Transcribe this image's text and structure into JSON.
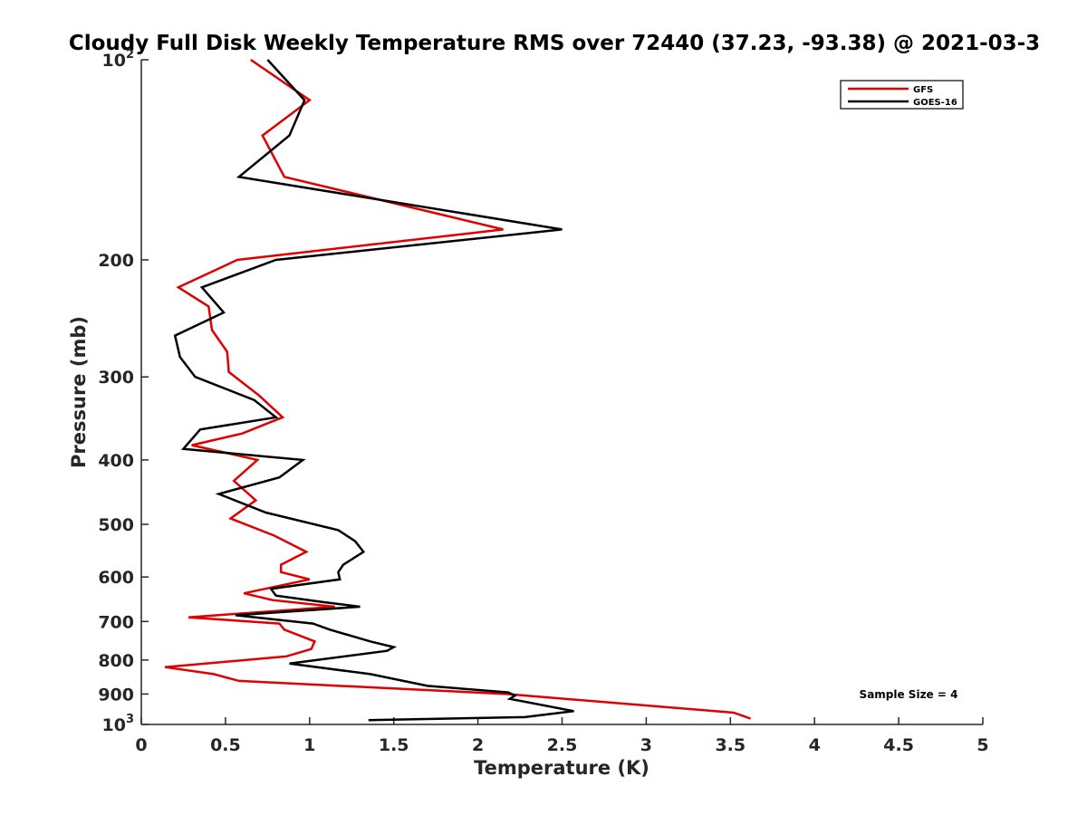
{
  "chart_data": {
    "type": "line",
    "title": "Cloudy Full Disk Weekly Temperature RMS over 72440 (37.23, -93.38) @ 2021-03-3",
    "xlabel": "Temperature (K)",
    "ylabel": "Pressure (mb)",
    "xlim": [
      0,
      5
    ],
    "ylim": [
      100,
      1000
    ],
    "y_scale": "log",
    "y_reversed": true,
    "grid": false,
    "legend_position": "top-right",
    "x_ticks": [
      "0",
      "0.5",
      "1",
      "1.5",
      "2",
      "2.5",
      "3",
      "3.5",
      "4",
      "4.5",
      "5"
    ],
    "y_ticks": [
      {
        "value": 100,
        "base": "10",
        "exp": "2"
      },
      {
        "value": 200,
        "label": "200"
      },
      {
        "value": 300,
        "label": "300"
      },
      {
        "value": 400,
        "label": "400"
      },
      {
        "value": 500,
        "label": "500"
      },
      {
        "value": 600,
        "label": "600"
      },
      {
        "value": 700,
        "label": "700"
      },
      {
        "value": 800,
        "label": "800"
      },
      {
        "value": 900,
        "label": "900"
      },
      {
        "value": 1000,
        "base": "10",
        "exp": "3"
      }
    ],
    "annotation": "Sample Size = 4",
    "series": [
      {
        "name": "GFS",
        "color": "#e00000",
        "points": [
          [
            0.65,
            100
          ],
          [
            1.0,
            115
          ],
          [
            0.72,
            130
          ],
          [
            0.85,
            150
          ],
          [
            2.15,
            180
          ],
          [
            0.57,
            200
          ],
          [
            0.22,
            220
          ],
          [
            0.4,
            235
          ],
          [
            0.42,
            255
          ],
          [
            0.51,
            275
          ],
          [
            0.52,
            295
          ],
          [
            0.7,
            320
          ],
          [
            0.84,
            345
          ],
          [
            0.6,
            365
          ],
          [
            0.3,
            380
          ],
          [
            0.69,
            400
          ],
          [
            0.55,
            430
          ],
          [
            0.68,
            460
          ],
          [
            0.53,
            490
          ],
          [
            0.79,
            520
          ],
          [
            0.98,
            550
          ],
          [
            0.83,
            575
          ],
          [
            0.83,
            590
          ],
          [
            1.0,
            605
          ],
          [
            0.61,
            635
          ],
          [
            0.78,
            650
          ],
          [
            1.15,
            665
          ],
          [
            0.28,
            690
          ],
          [
            0.82,
            705
          ],
          [
            0.85,
            720
          ],
          [
            1.03,
            750
          ],
          [
            1.01,
            770
          ],
          [
            0.86,
            790
          ],
          [
            0.14,
            820
          ],
          [
            0.43,
            840
          ],
          [
            0.58,
            860
          ],
          [
            2.17,
            900
          ],
          [
            3.52,
            960
          ],
          [
            3.62,
            980
          ]
        ]
      },
      {
        "name": "GOES-16",
        "color": "#000000",
        "points": [
          [
            0.75,
            100
          ],
          [
            0.97,
            115
          ],
          [
            0.88,
            130
          ],
          [
            0.58,
            150
          ],
          [
            2.5,
            180
          ],
          [
            0.8,
            200
          ],
          [
            0.36,
            220
          ],
          [
            0.49,
            240
          ],
          [
            0.2,
            260
          ],
          [
            0.23,
            280
          ],
          [
            0.32,
            300
          ],
          [
            0.67,
            325
          ],
          [
            0.8,
            345
          ],
          [
            0.35,
            360
          ],
          [
            0.25,
            385
          ],
          [
            0.96,
            400
          ],
          [
            0.82,
            425
          ],
          [
            0.46,
            450
          ],
          [
            0.74,
            480
          ],
          [
            1.17,
            510
          ],
          [
            1.27,
            530
          ],
          [
            1.32,
            550
          ],
          [
            1.2,
            575
          ],
          [
            1.17,
            590
          ],
          [
            1.18,
            605
          ],
          [
            0.77,
            625
          ],
          [
            0.8,
            640
          ],
          [
            1.09,
            655
          ],
          [
            1.3,
            665
          ],
          [
            0.56,
            685
          ],
          [
            1.02,
            705
          ],
          [
            1.12,
            720
          ],
          [
            1.36,
            750
          ],
          [
            1.5,
            765
          ],
          [
            1.46,
            775
          ],
          [
            0.88,
            810
          ],
          [
            1.36,
            840
          ],
          [
            1.7,
            875
          ],
          [
            2.18,
            895
          ],
          [
            2.22,
            905
          ],
          [
            2.19,
            915
          ],
          [
            2.57,
            955
          ],
          [
            2.28,
            975
          ],
          [
            1.35,
            985
          ]
        ]
      }
    ]
  }
}
